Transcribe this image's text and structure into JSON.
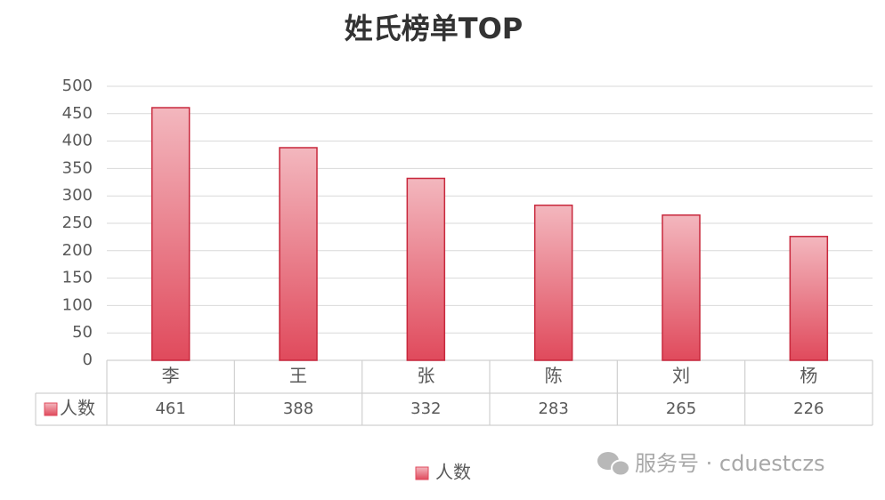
{
  "chart_data": {
    "type": "bar",
    "title": "姓氏榜单TOP",
    "categories": [
      "李",
      "王",
      "张",
      "陈",
      "刘",
      "杨"
    ],
    "series": [
      {
        "name": "人数",
        "color": "#e04a5c",
        "values": [
          461,
          388,
          332,
          283,
          265,
          226
        ]
      }
    ],
    "ylim": [
      0,
      500
    ],
    "yticks": [
      0,
      50,
      100,
      150,
      200,
      250,
      300,
      350,
      400,
      450,
      500
    ],
    "grid": true,
    "data_table": true,
    "legend": "bottom",
    "watermark": "服务号 · cduestczs"
  }
}
